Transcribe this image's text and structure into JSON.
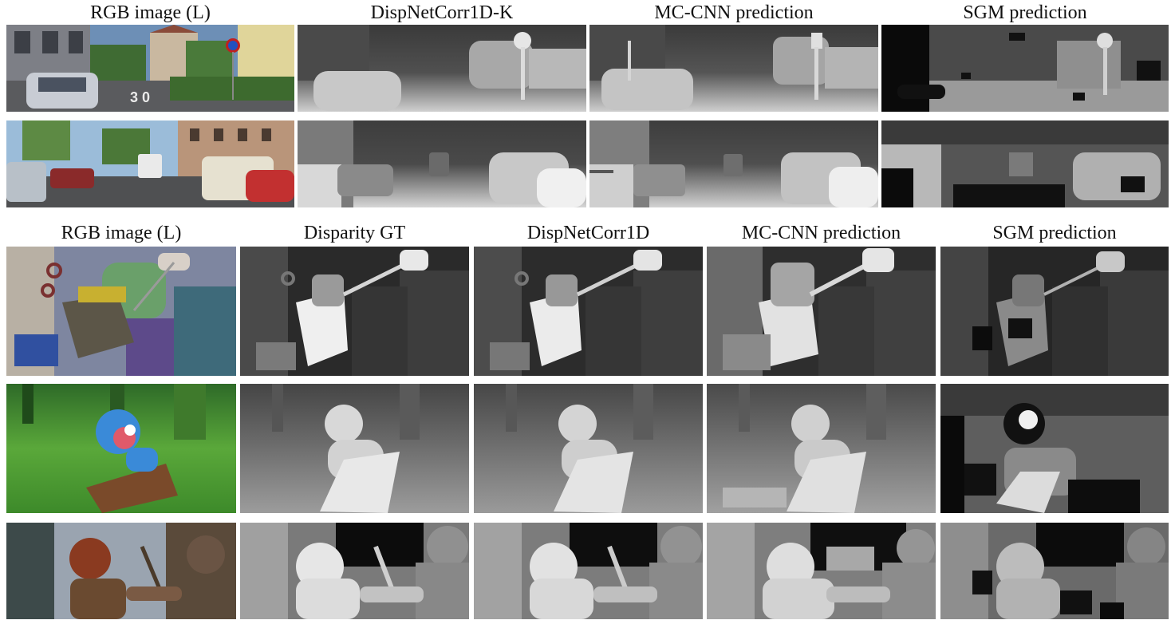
{
  "top_section": {
    "headers": [
      "RGB image (L)",
      "DispNetCorr1D-K",
      "MC-CNN prediction",
      "SGM prediction"
    ],
    "rows": [
      {
        "tiles": [
          "kitti-street-1-rgb",
          "kitti-street-1-dispnet",
          "kitti-street-1-mccnn",
          "kitti-street-1-sgm"
        ]
      },
      {
        "tiles": [
          "kitti-street-2-rgb",
          "kitti-street-2-dispnet",
          "kitti-street-2-mccnn",
          "kitti-street-2-sgm"
        ]
      }
    ]
  },
  "bottom_section": {
    "headers": [
      "RGB image (L)",
      "Disparity GT",
      "DispNetCorr1D",
      "MC-CNN prediction",
      "SGM prediction"
    ],
    "rows": [
      {
        "tiles": [
          "sintel-robot-rgb",
          "sintel-robot-gt",
          "sintel-robot-dispnet",
          "sintel-robot-mccnn",
          "sintel-robot-sgm"
        ]
      },
      {
        "tiles": [
          "monkey-rgb",
          "monkey-gt",
          "monkey-dispnet",
          "monkey-mccnn",
          "monkey-sgm"
        ]
      },
      {
        "tiles": [
          "warrior-rgb",
          "warrior-gt",
          "warrior-dispnet",
          "warrior-mccnn",
          "warrior-sgm"
        ]
      }
    ]
  }
}
